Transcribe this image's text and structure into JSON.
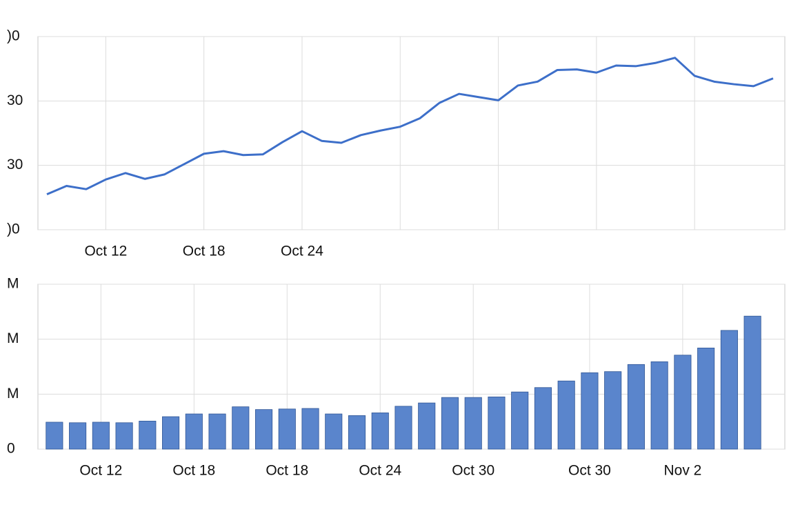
{
  "chart_data": [
    {
      "type": "line",
      "color": "#3d6fc9",
      "categories": [
        null,
        null,
        null,
        "Oct 12",
        null,
        null,
        null,
        null,
        "Oct 18",
        null,
        null,
        null,
        null,
        "Oct 24",
        null,
        null,
        null,
        null,
        null,
        null,
        null,
        null,
        null,
        null,
        null,
        null,
        null,
        null,
        null,
        null,
        null,
        null,
        null,
        null,
        null,
        null,
        null,
        null
      ],
      "values": [
        0.55,
        0.68,
        0.63,
        0.78,
        0.88,
        0.79,
        0.86,
        1.02,
        1.18,
        1.22,
        1.16,
        1.17,
        1.36,
        1.53,
        1.38,
        1.35,
        1.47,
        1.54,
        1.6,
        1.73,
        1.97,
        2.11,
        2.06,
        2.01,
        2.24,
        2.3,
        2.48,
        2.49,
        2.44,
        2.55,
        2.54,
        2.59,
        2.67,
        2.39,
        2.3,
        2.26,
        2.23,
        2.35
      ],
      "ylim": [
        0,
        3
      ],
      "yticks": [
        {
          "value": 0,
          "label": ")0"
        },
        {
          "value": 1,
          "label": "30"
        },
        {
          "value": 2,
          "label": "30"
        },
        {
          "value": 3,
          "label": ")0"
        }
      ],
      "grid": true
    },
    {
      "type": "bar",
      "color": "#5a85cc",
      "categories": [
        null,
        null,
        "Oct 12",
        null,
        null,
        null,
        "Oct 18",
        null,
        null,
        null,
        "Oct 18",
        null,
        null,
        null,
        "Oct 24",
        null,
        null,
        null,
        "Oct 30",
        null,
        null,
        null,
        null,
        "Oct 30",
        null,
        null,
        null,
        "Nov 2",
        null,
        null,
        null
      ],
      "values": [
        0.49,
        0.48,
        0.49,
        0.48,
        0.51,
        0.59,
        0.64,
        0.64,
        0.77,
        0.72,
        0.73,
        0.74,
        0.64,
        0.61,
        0.66,
        0.78,
        0.84,
        0.94,
        0.94,
        0.95,
        1.04,
        1.12,
        1.24,
        1.39,
        1.41,
        1.54,
        1.59,
        1.71,
        1.84,
        2.16,
        2.42
      ],
      "ylim": [
        0,
        3
      ],
      "yticks": [
        0,
        {
          "value": 1,
          "label": "M"
        },
        {
          "value": 2,
          "label": "M"
        },
        {
          "value": 3,
          "label": "M"
        }
      ],
      "grid": true
    }
  ]
}
